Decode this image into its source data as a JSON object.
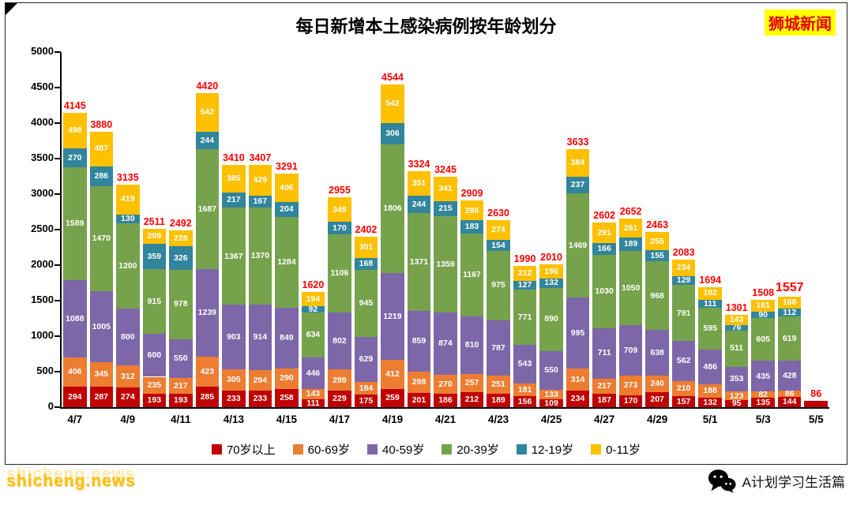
{
  "header": {
    "title": "每日新增本土感染病例按年龄划分",
    "brand": "狮城新闻"
  },
  "watermarks": {
    "bottom_left": "shicheng.news",
    "bottom_right": "A计划学习生活篇"
  },
  "chart_data": {
    "type": "bar",
    "stacked": true,
    "title": "每日新增本土感染病例按年龄划分",
    "xlabel": "",
    "ylabel": "",
    "ylim": [
      0,
      5000
    ],
    "ytick_step": 500,
    "yticks": [
      0,
      500,
      1000,
      1500,
      2000,
      2500,
      3000,
      3500,
      4000,
      4500,
      5000
    ],
    "grid": false,
    "legend_position": "bottom",
    "xtick_shown_every": 2,
    "total_label_color": "#FF0000",
    "highlighted_total_index": 27,
    "categories": [
      "4/7",
      "4/8",
      "4/9",
      "4/10",
      "4/11",
      "4/12",
      "4/13",
      "4/14",
      "4/15",
      "4/16",
      "4/17",
      "4/18",
      "4/19",
      "4/20",
      "4/21",
      "4/22",
      "4/23",
      "4/24",
      "4/25",
      "4/26",
      "4/27",
      "4/28",
      "4/29",
      "4/30",
      "5/1",
      "5/2",
      "5/3",
      "5/4",
      "5/5"
    ],
    "totals": [
      4145,
      3880,
      3135,
      2511,
      2492,
      4420,
      3410,
      3407,
      3291,
      1620,
      2955,
      2402,
      4544,
      3324,
      3245,
      2909,
      2630,
      1990,
      2010,
      3633,
      2602,
      2652,
      2463,
      2083,
      1694,
      1301,
      1508,
      1557,
      86
    ],
    "series": [
      {
        "name": "70岁以上",
        "color": "#C00000",
        "values": [
          294,
          287,
          274,
          193,
          193,
          285,
          233,
          233,
          258,
          111,
          229,
          175,
          259,
          201,
          186,
          212,
          189,
          156,
          109,
          234,
          187,
          170,
          207,
          157,
          132,
          95,
          135,
          144,
          86
        ]
      },
      {
        "name": "60-69岁",
        "color": "#ED7D31",
        "values": [
          406,
          345,
          312,
          235,
          217,
          423,
          305,
          294,
          290,
          143,
          299,
          184,
          412,
          298,
          270,
          257,
          251,
          181,
          133,
          314,
          217,
          273,
          240,
          210,
          188,
          123,
          82,
          86,
          0
        ]
      },
      {
        "name": "40-59岁",
        "color": "#7D67A8",
        "values": [
          1088,
          1005,
          800,
          600,
          550,
          1239,
          903,
          914,
          849,
          446,
          802,
          629,
          1219,
          859,
          874,
          810,
          787,
          543,
          550,
          995,
          711,
          709,
          638,
          562,
          486,
          353,
          435,
          428,
          0
        ]
      },
      {
        "name": "20-39岁",
        "color": "#76A24C",
        "values": [
          1589,
          1470,
          1200,
          915,
          978,
          1687,
          1367,
          1370,
          1284,
          634,
          1106,
          945,
          1806,
          1371,
          1359,
          1167,
          975,
          771,
          890,
          1469,
          1030,
          1050,
          968,
          791,
          595,
          511,
          605,
          619,
          0
        ]
      },
      {
        "name": "12-19岁",
        "color": "#31859C",
        "values": [
          270,
          286,
          130,
          359,
          326,
          244,
          217,
          167,
          204,
          92,
          170,
          168,
          306,
          244,
          215,
          183,
          154,
          127,
          132,
          237,
          166,
          189,
          155,
          129,
          111,
          76,
          90,
          112,
          0
        ]
      },
      {
        "name": "0-11岁",
        "color": "#FFC000",
        "values": [
          498,
          487,
          419,
          209,
          228,
          542,
          385,
          429,
          406,
          194,
          349,
          301,
          542,
          351,
          341,
          280,
          274,
          212,
          196,
          384,
          291,
          261,
          255,
          234,
          182,
          143,
          161,
          168,
          0
        ]
      }
    ]
  }
}
